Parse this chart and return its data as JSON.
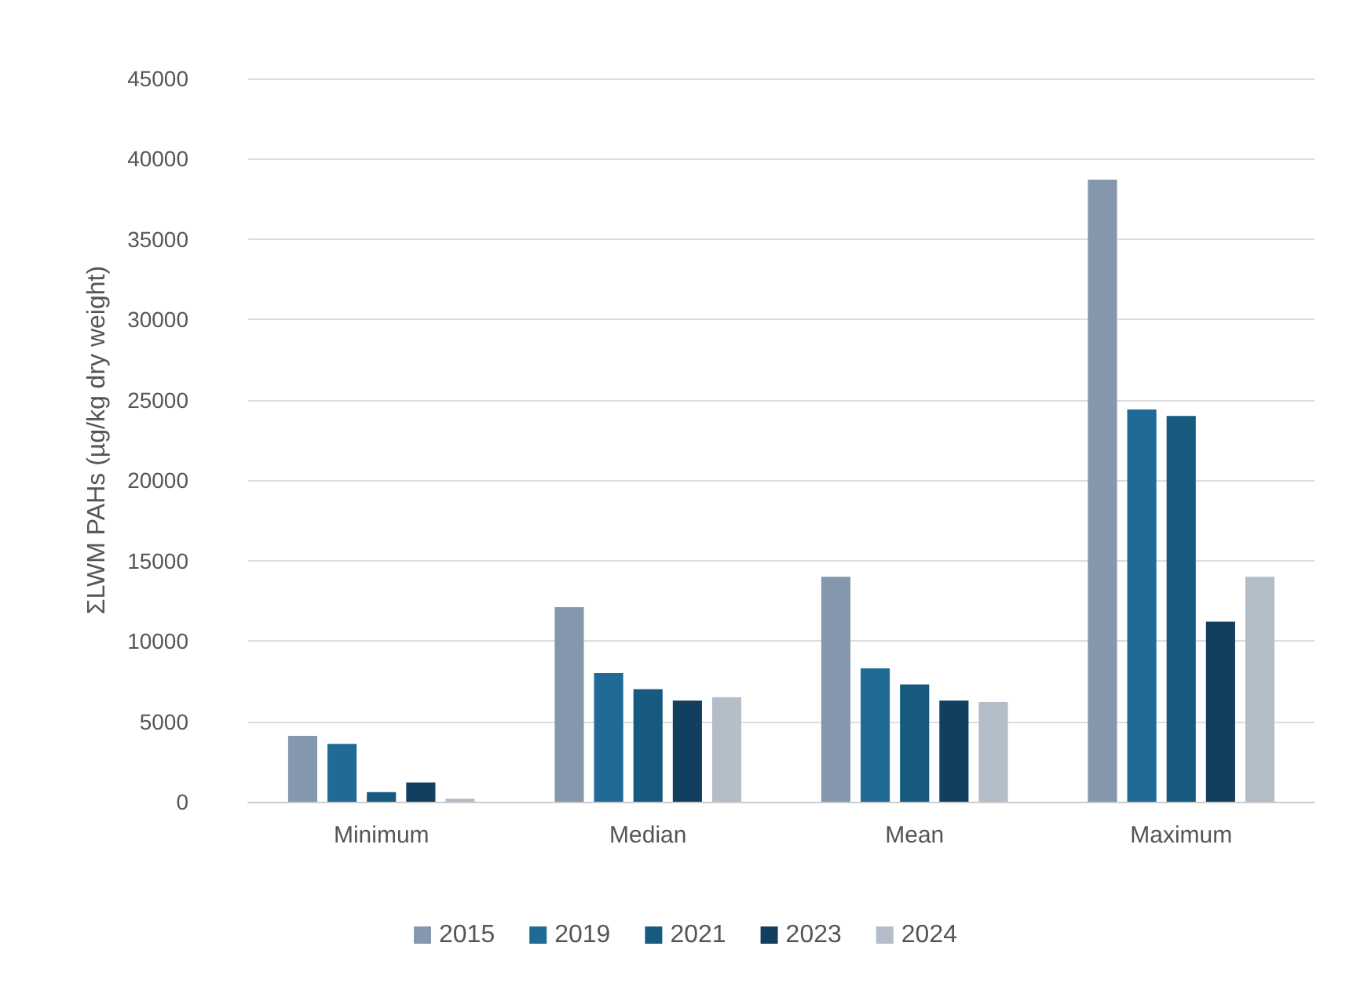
{
  "chart_data": {
    "type": "bar",
    "ylabel": "ΣLWM PAHs (µg/kg dry weight)",
    "categories": [
      "Minimum",
      "Median",
      "Mean",
      "Maximum"
    ],
    "series": [
      {
        "name": "2015",
        "color": "#8497ad",
        "values": [
          4100,
          12100,
          14000,
          38700
        ]
      },
      {
        "name": "2019",
        "color": "#1f6a96",
        "values": [
          3600,
          8000,
          8300,
          24400
        ]
      },
      {
        "name": "2021",
        "color": "#175a80",
        "values": [
          600,
          7000,
          7300,
          24000
        ]
      },
      {
        "name": "2023",
        "color": "#123f60",
        "values": [
          1200,
          6300,
          6300,
          11200
        ]
      },
      {
        "name": "2024",
        "color": "#b4bec9",
        "values": [
          200,
          6500,
          6200,
          14000
        ]
      }
    ],
    "ylim": [
      0,
      45000
    ],
    "yticks": [
      0,
      5000,
      10000,
      15000,
      20000,
      25000,
      30000,
      35000,
      40000,
      45000
    ],
    "grid": "y",
    "legend": "bottom"
  }
}
